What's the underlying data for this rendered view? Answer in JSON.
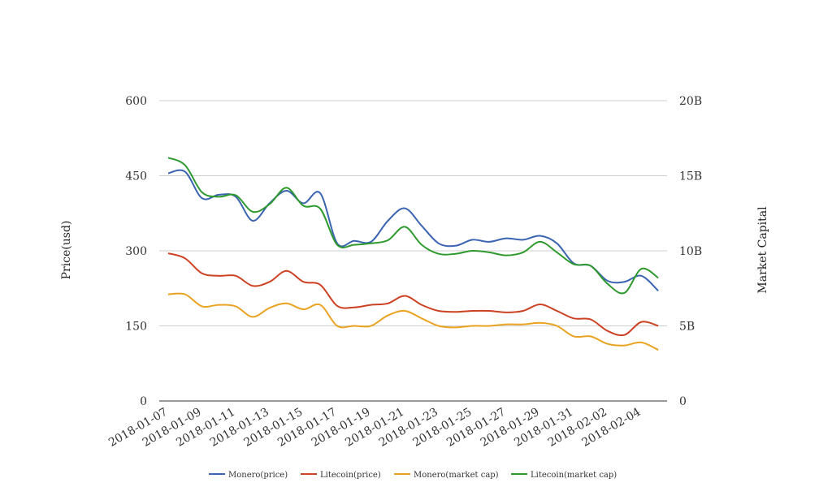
{
  "chart_data": {
    "type": "line",
    "title": "",
    "xlabel": "",
    "ylabel": "Price(usd)",
    "y2label": "Market Capital",
    "ylim": [
      0,
      600
    ],
    "y2lim": [
      0,
      20000000000
    ],
    "y_ticks": [
      "0",
      "150",
      "300",
      "450",
      "600"
    ],
    "y2_ticks": [
      "0",
      "5B",
      "10B",
      "15B",
      "20B"
    ],
    "x": [
      "2018-01-07",
      "2018-01-08",
      "2018-01-09",
      "2018-01-10",
      "2018-01-11",
      "2018-01-12",
      "2018-01-13",
      "2018-01-14",
      "2018-01-15",
      "2018-01-16",
      "2018-01-17",
      "2018-01-18",
      "2018-01-19",
      "2018-01-20",
      "2018-01-21",
      "2018-01-22",
      "2018-01-23",
      "2018-01-24",
      "2018-01-25",
      "2018-01-26",
      "2018-01-27",
      "2018-01-28",
      "2018-01-29",
      "2018-01-30",
      "2018-01-31",
      "2018-02-01",
      "2018-02-02",
      "2018-02-03",
      "2018-02-04",
      "2018-02-05"
    ],
    "x_tick_labels": [
      "2018-01-07",
      "2018-01-09",
      "2018-01-11",
      "2018-01-13",
      "2018-01-15",
      "2018-01-17",
      "2018-01-19",
      "2018-01-21",
      "2018-01-23",
      "2018-01-25",
      "2018-01-27",
      "2018-01-29",
      "2018-01-31",
      "2018-02-02",
      "2018-02-04"
    ],
    "grid": true,
    "legend_position": "bottom",
    "series": [
      {
        "name": "Monero(price)",
        "axis": "left",
        "color": "#3a64b1",
        "values": [
          455,
          458,
          405,
          412,
          408,
          360,
          395,
          420,
          395,
          415,
          315,
          320,
          318,
          360,
          385,
          350,
          315,
          310,
          322,
          318,
          325,
          322,
          330,
          315,
          275,
          270,
          240,
          238,
          250,
          220
        ]
      },
      {
        "name": "Litecoin(price)",
        "axis": "left",
        "color": "#cc4122",
        "values": [
          295,
          285,
          255,
          250,
          250,
          230,
          238,
          260,
          238,
          232,
          190,
          187,
          192,
          195,
          210,
          192,
          180,
          178,
          180,
          180,
          177,
          180,
          193,
          180,
          165,
          163,
          140,
          132,
          158,
          150
        ]
      },
      {
        "name": "Monero(market cap)",
        "axis": "right",
        "color": "#e9a321",
        "values": [
          7100000000,
          7100000000,
          6300000000,
          6400000000,
          6300000000,
          5600000000,
          6200000000,
          6500000000,
          6100000000,
          6400000000,
          5000000000,
          5000000000,
          5000000000,
          5700000000,
          6000000000,
          5500000000,
          5000000000,
          4900000000,
          5000000000,
          5000000000,
          5100000000,
          5100000000,
          5200000000,
          5000000000,
          4300000000,
          4300000000,
          3800000000,
          3700000000,
          3900000000,
          3400000000
        ]
      },
      {
        "name": "Litecoin(market cap)",
        "axis": "right",
        "color": "#2e9a2e",
        "values": [
          16200000000,
          15700000000,
          13900000000,
          13600000000,
          13700000000,
          12600000000,
          13100000000,
          14200000000,
          13000000000,
          12800000000,
          10400000000,
          10400000000,
          10500000000,
          10700000000,
          11600000000,
          10400000000,
          9800000000,
          9800000000,
          10000000000,
          9900000000,
          9700000000,
          9900000000,
          10600000000,
          9900000000,
          9100000000,
          9000000000,
          7800000000,
          7200000000,
          8800000000,
          8200000000
        ]
      }
    ]
  }
}
